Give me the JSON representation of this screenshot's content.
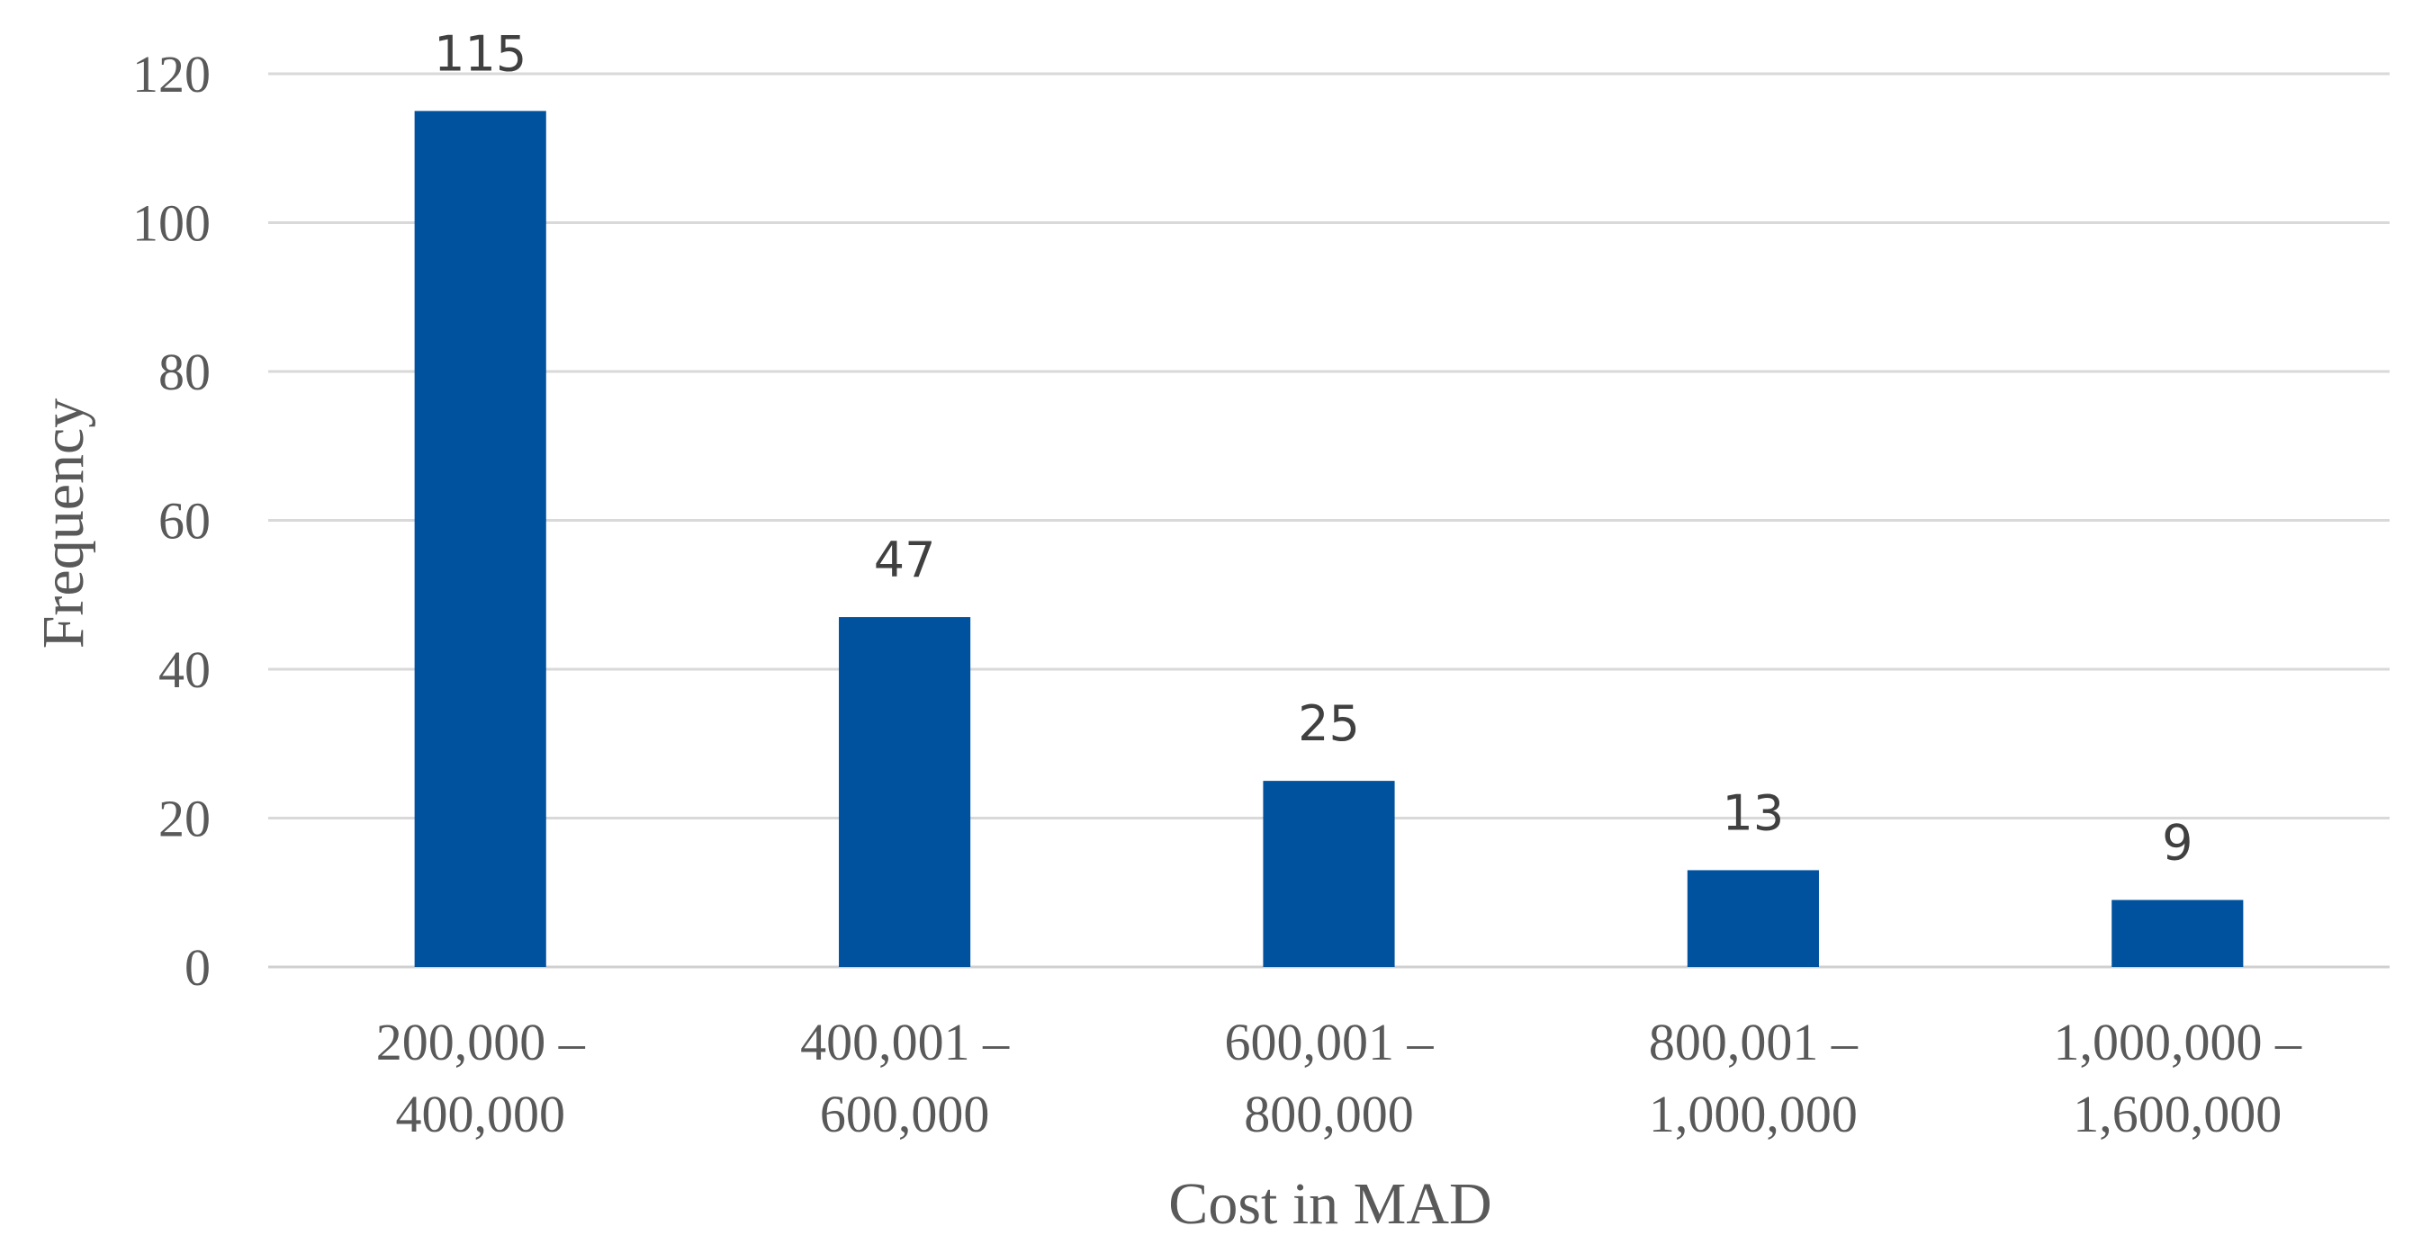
{
  "chart_data": {
    "type": "bar",
    "title": "",
    "xlabel": "Cost in MAD",
    "ylabel": "Frequency",
    "ylim": [
      0,
      120
    ],
    "yticks": [
      0,
      20,
      40,
      60,
      80,
      100,
      120
    ],
    "grid": true,
    "legend": "none",
    "bar_color": "#00519E",
    "categories": [
      [
        "200,000 –",
        "400,000"
      ],
      [
        "400,001 –",
        "600,000"
      ],
      [
        "600,001 –",
        "800,000"
      ],
      [
        "800,001 –",
        "1,000,000"
      ],
      [
        "1,000,000 –",
        "1,600,000"
      ]
    ],
    "values": [
      115,
      47,
      25,
      13,
      9
    ],
    "data_labels": [
      "115",
      "47",
      "25",
      "13",
      "9"
    ]
  }
}
